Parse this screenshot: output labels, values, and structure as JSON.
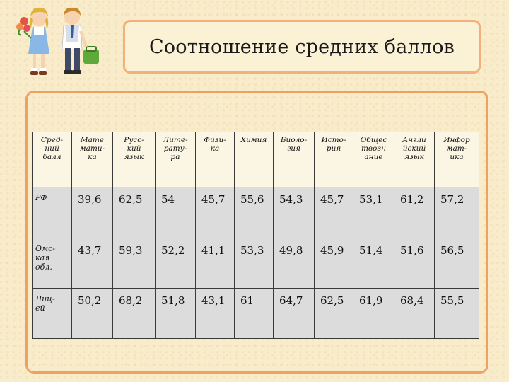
{
  "slide": {
    "title": "Соотношение средних баллов"
  },
  "table": {
    "headers": [
      "Сред-\nний\nбалл",
      "Мате\nмати-\nка",
      "Русс-\nкий\nязык",
      "Лите-\nрату-\nра",
      "Физи-\nка",
      "Химия",
      "Биоло-\nгия",
      "Исто-\nрия",
      "Общес\nтвозн\nание",
      "Англи\nйский\nязык",
      "Инфор\nмат-\nика"
    ],
    "rows": [
      {
        "label": "РФ",
        "values": [
          "39,6",
          "62,5",
          "54",
          "45,7",
          "55,6",
          "54,3",
          "45,7",
          "53,1",
          "61,2",
          "57,2"
        ]
      },
      {
        "label": "Омс-\nкая\nобл.",
        "values": [
          "43,7",
          "59,3",
          "52,2",
          "41,1",
          "53,3",
          "49,8",
          "45,9",
          "51,4",
          "51,6",
          "56,5"
        ]
      },
      {
        "label": "Лиц-\nей",
        "values": [
          "50,2",
          "68,2",
          "51,8",
          "43,1",
          "61",
          "64,7",
          "62,5",
          "61,9",
          "68,4",
          "55,5"
        ]
      }
    ]
  },
  "colors": {
    "background": "#f8ecca",
    "frame_border": "#f0a062",
    "title_border": "#f2b07a",
    "row_fill": "#dcdcdc"
  },
  "illustration": {
    "icon": "schoolchildren-clipart"
  }
}
